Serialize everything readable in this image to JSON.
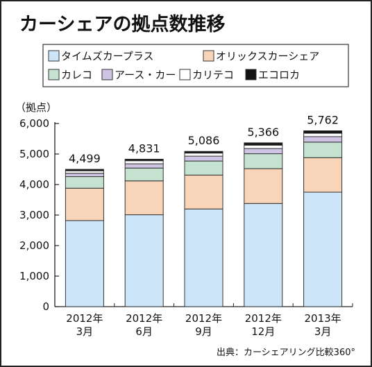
{
  "chart_data": {
    "type": "bar",
    "stacked": true,
    "title": "カーシェアの拠点数推移",
    "ylabel": "（拠点）",
    "xlabel": "",
    "ylim": [
      0,
      6000
    ],
    "yticks": [
      0,
      1000,
      2000,
      3000,
      4000,
      5000,
      6000
    ],
    "ytick_labels": [
      "0",
      "1,000",
      "2,000",
      "3,000",
      "4,000",
      "5,000",
      "6,000"
    ],
    "categories": [
      [
        "2012年",
        "3月"
      ],
      [
        "2012年",
        "6月"
      ],
      [
        "2012年",
        "9月"
      ],
      [
        "2012年",
        "12月"
      ],
      [
        "2013年",
        "3月"
      ]
    ],
    "totals": [
      4499,
      4831,
      5086,
      5366,
      5762
    ],
    "total_labels": [
      "4,499",
      "4,831",
      "5,086",
      "5,366",
      "5,762"
    ],
    "series": [
      {
        "name": "タイムズカープラス",
        "color": "#cce5f8",
        "values": [
          2820,
          3010,
          3200,
          3380,
          3750
        ]
      },
      {
        "name": "オリックスカーシェア",
        "color": "#f8d4b8",
        "values": [
          1060,
          1110,
          1110,
          1140,
          1130
        ]
      },
      {
        "name": "カレコ",
        "color": "#c4e2cf",
        "values": [
          380,
          420,
          460,
          490,
          510
        ]
      },
      {
        "name": "アース・カー",
        "color": "#cfc4e4",
        "values": [
          110,
          140,
          160,
          170,
          180
        ]
      },
      {
        "name": "カリテコ",
        "color": "#ffffff",
        "values": [
          80,
          100,
          100,
          110,
          110
        ]
      },
      {
        "name": "エコロカ",
        "color": "#111111",
        "values": [
          49,
          51,
          56,
          76,
          82
        ]
      }
    ],
    "legend_position": "top",
    "grid": false,
    "source": "出典：カーシェアリング比較360°"
  }
}
